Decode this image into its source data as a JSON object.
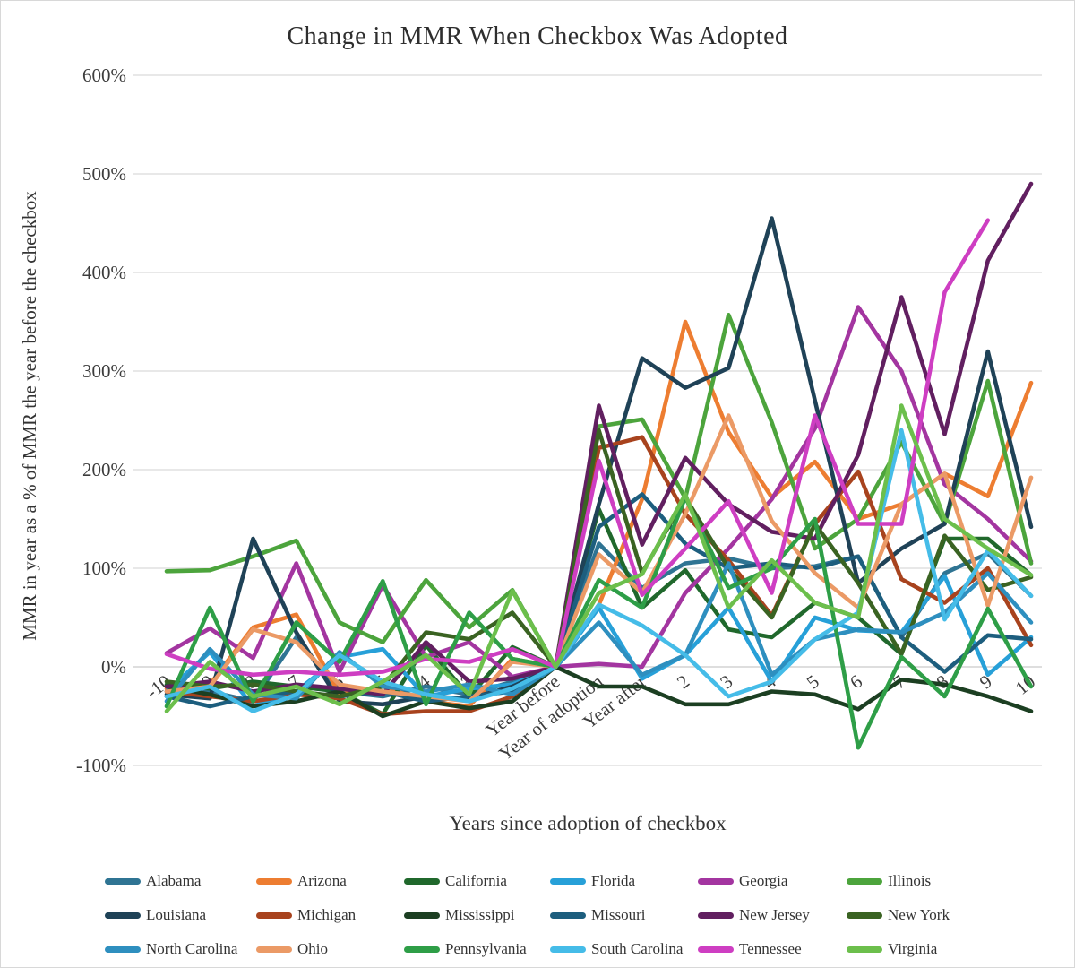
{
  "title": "Change in MMR When Checkbox Was Adopted",
  "y_axis": {
    "label": "MMR in year as a % of MMR the year before the checkbox",
    "tick_labels": [
      "600%",
      "500%",
      "400%",
      "300%",
      "200%",
      "100%",
      "0%",
      "-100%"
    ],
    "min": -100,
    "max": 600,
    "step": 100
  },
  "x_axis": {
    "label": "Years since adoption of checkbox"
  },
  "chart_data": {
    "type": "line",
    "grid": "horizontal",
    "legend_position": "bottom",
    "ylim": [
      -100,
      600
    ],
    "categories": [
      "-10",
      "-9",
      "-8",
      "-7",
      "-6",
      "-5",
      "-4",
      "-3",
      "-2",
      "Year before",
      "Year of adoption",
      "Year after",
      "2",
      "3",
      "4",
      "5",
      "6",
      "7",
      "8",
      "9",
      "10"
    ],
    "series": [
      {
        "name": "Alabama",
        "color": "#2F7493",
        "values": [
          -30,
          -25,
          -35,
          30,
          -25,
          -30,
          -20,
          -28,
          -15,
          0,
          125,
          80,
          105,
          110,
          100,
          102,
          112,
          30,
          95,
          115,
          72
        ]
      },
      {
        "name": "Arizona",
        "color": "#ED7D31",
        "values": [
          -22,
          -18,
          40,
          53,
          -28,
          -20,
          -35,
          -40,
          8,
          0,
          63,
          170,
          350,
          238,
          172,
          208,
          150,
          165,
          196,
          173,
          288
        ]
      },
      {
        "name": "California",
        "color": "#20682C",
        "values": [
          -18,
          -22,
          -15,
          -20,
          -25,
          -48,
          22,
          -30,
          20,
          0,
          160,
          60,
          98,
          38,
          30,
          65,
          50,
          13,
          130,
          130,
          93
        ]
      },
      {
        "name": "Florida",
        "color": "#27A0D8",
        "values": [
          -25,
          15,
          -40,
          -25,
          10,
          18,
          -30,
          -22,
          -18,
          0,
          60,
          -12,
          12,
          60,
          -15,
          50,
          37,
          35,
          92,
          -8,
          30
        ]
      },
      {
        "name": "Georgia",
        "color": "#A335A0",
        "values": [
          14,
          39,
          9,
          105,
          -5,
          83,
          10,
          25,
          -10,
          0,
          3,
          0,
          75,
          120,
          170,
          242,
          365,
          300,
          185,
          150,
          107
        ]
      },
      {
        "name": "Illinois",
        "color": "#4CA43C",
        "values": [
          97,
          98,
          112,
          128,
          45,
          25,
          88,
          40,
          78,
          0,
          244,
          251,
          171,
          357,
          248,
          120,
          150,
          228,
          145,
          290,
          105
        ]
      },
      {
        "name": "Louisiana",
        "color": "#1F4257",
        "values": [
          -28,
          -32,
          130,
          35,
          -35,
          -38,
          -30,
          -32,
          -20,
          0,
          165,
          313,
          283,
          303,
          455,
          270,
          85,
          120,
          145,
          320,
          142
        ]
      },
      {
        "name": "Michigan",
        "color": "#A8431E",
        "values": [
          -25,
          -30,
          -35,
          -28,
          -32,
          -48,
          -45,
          -45,
          -30,
          0,
          222,
          233,
          155,
          108,
          52,
          145,
          198,
          89,
          65,
          100,
          22
        ]
      },
      {
        "name": "Mississippi",
        "color": "#1C3F22",
        "values": [
          -20,
          -28,
          -40,
          -35,
          -25,
          -50,
          -35,
          -42,
          -35,
          0,
          -20,
          -20,
          -38,
          -38,
          -25,
          -28,
          -43,
          -13,
          -18,
          -30,
          -45
        ]
      },
      {
        "name": "Missouri",
        "color": "#1D5E7E",
        "values": [
          -30,
          -40,
          -30,
          -25,
          -30,
          -25,
          -35,
          -30,
          -25,
          0,
          142,
          175,
          125,
          100,
          105,
          100,
          112,
          30,
          -5,
          32,
          28
        ]
      },
      {
        "name": "New Jersey",
        "color": "#611F60",
        "values": [
          -20,
          -15,
          -25,
          -18,
          -22,
          -28,
          25,
          -15,
          -12,
          0,
          265,
          124,
          212,
          165,
          137,
          130,
          215,
          375,
          236,
          412,
          490
        ]
      },
      {
        "name": "New York",
        "color": "#3A6322",
        "values": [
          -15,
          -20,
          -18,
          -25,
          -30,
          -20,
          35,
          28,
          55,
          0,
          240,
          95,
          172,
          100,
          50,
          145,
          85,
          13,
          133,
          78,
          91
        ]
      },
      {
        "name": "North Carolina",
        "color": "#2E8FBF",
        "values": [
          -35,
          18,
          -28,
          -32,
          15,
          -20,
          -25,
          -18,
          -28,
          0,
          45,
          -8,
          12,
          105,
          -8,
          28,
          38,
          35,
          55,
          95,
          45
        ]
      },
      {
        "name": "Ohio",
        "color": "#EB9A66",
        "values": [
          -25,
          -20,
          38,
          25,
          -18,
          -25,
          -30,
          -35,
          5,
          0,
          114,
          75,
          155,
          255,
          148,
          95,
          60,
          165,
          196,
          62,
          192
        ]
      },
      {
        "name": "Pennsylvania",
        "color": "#2E9E47",
        "values": [
          -40,
          60,
          -35,
          45,
          5,
          87,
          -38,
          55,
          8,
          0,
          88,
          60,
          172,
          80,
          100,
          150,
          -82,
          10,
          -30,
          59,
          -20
        ]
      },
      {
        "name": "South Carolina",
        "color": "#45BCE8",
        "values": [
          -30,
          -20,
          -45,
          -28,
          12,
          -15,
          -28,
          -35,
          -22,
          0,
          63,
          42,
          12,
          -30,
          -15,
          28,
          55,
          240,
          48,
          118,
          72
        ]
      },
      {
        "name": "Tennessee",
        "color": "#CE3EC2",
        "values": [
          13,
          -2,
          -8,
          -5,
          -8,
          -5,
          8,
          5,
          18,
          0,
          209,
          73,
          120,
          168,
          75,
          255,
          145,
          145,
          380,
          453,
          null
        ]
      },
      {
        "name": "Virginia",
        "color": "#6CBF4C",
        "values": [
          -45,
          5,
          -30,
          -20,
          -38,
          -15,
          12,
          -28,
          77,
          0,
          75,
          94,
          175,
          60,
          108,
          65,
          50,
          265,
          150,
          120,
          93
        ]
      }
    ]
  },
  "legend": {
    "columns": 6,
    "rows": 3
  }
}
